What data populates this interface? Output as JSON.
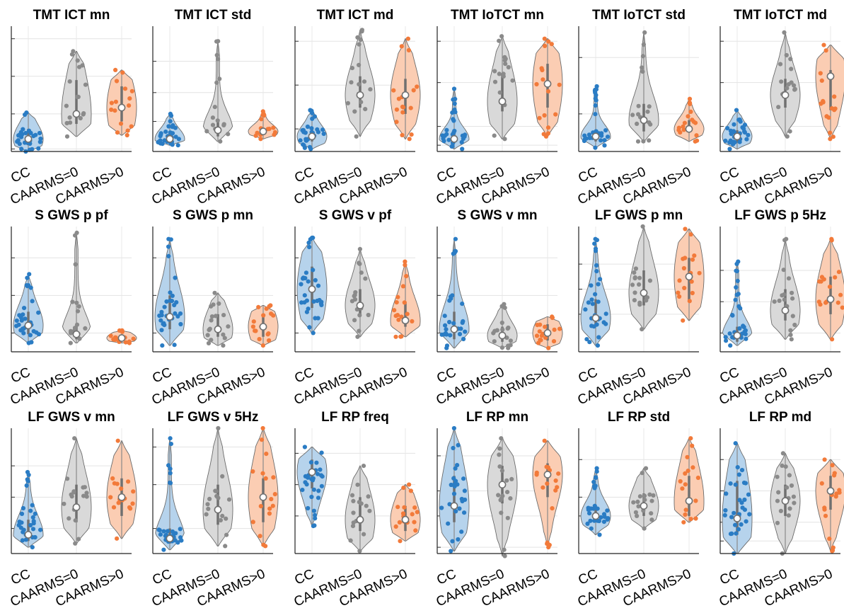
{
  "colors": {
    "CC": "#2a7cc4",
    "CAARMS=0": "#8a8a8a",
    "CAARMS>0": "#f27a3a"
  },
  "fill_colors": {
    "CC": "#b6d3ec",
    "CAARMS=0": "#d9d9d9",
    "CAARMS>0": "#fbcdb3"
  },
  "chart_data": {
    "type": "violin",
    "grid": true,
    "categories": [
      "CC",
      "CAARMS=0",
      "CAARMS>0"
    ],
    "ylim": [
      0,
      100
    ],
    "y_tick_labels_shown": false,
    "panels": [
      {
        "title": "TMT ICT mn",
        "yticks": [
          90,
          60,
          30,
          2
        ],
        "groups": [
          {
            "name": "CC",
            "range": [
              0,
              31
            ],
            "q1": 5,
            "median": 10,
            "q3": 18
          },
          {
            "name": "CAARMS=0",
            "range": [
              12,
              80
            ],
            "q1": 22,
            "median": 30,
            "q3": 57
          },
          {
            "name": "CAARMS>0",
            "range": [
              13,
              65
            ],
            "q1": 24,
            "median": 35,
            "q3": 52
          }
        ]
      },
      {
        "title": "TMT ICT std",
        "yticks": [
          72,
          47,
          24
        ],
        "groups": [
          {
            "name": "CC",
            "range": [
              5,
              30
            ],
            "q1": 7,
            "median": 10,
            "q3": 16
          },
          {
            "name": "CAARMS=0",
            "range": [
              8,
              88
            ],
            "q1": 12,
            "median": 17,
            "q3": 25
          },
          {
            "name": "CAARMS>0",
            "range": [
              10,
              32
            ],
            "q1": 13,
            "median": 16,
            "q3": 19
          }
        ]
      },
      {
        "title": "TMT ICT md",
        "yticks": [
          88,
          53,
          18
        ],
        "groups": [
          {
            "name": "CC",
            "range": [
              2,
              33
            ],
            "q1": 8,
            "median": 12,
            "q3": 18
          },
          {
            "name": "CAARMS=0",
            "range": [
              12,
              97
            ],
            "q1": 35,
            "median": 45,
            "q3": 60
          },
          {
            "name": "CAARMS>0",
            "range": [
              10,
              90
            ],
            "q1": 30,
            "median": 45,
            "q3": 58
          }
        ]
      },
      {
        "title": "TMT IoTCT mn",
        "yticks": [
          88,
          55,
          20,
          5
        ],
        "groups": [
          {
            "name": "CC",
            "range": [
              2,
              50
            ],
            "q1": 7,
            "median": 10,
            "q3": 17
          },
          {
            "name": "CAARMS=0",
            "range": [
              10,
              92
            ],
            "q1": 32,
            "median": 40,
            "q3": 62
          },
          {
            "name": "CAARMS>0",
            "range": [
              12,
              90
            ],
            "q1": 35,
            "median": 54,
            "q3": 70
          }
        ]
      },
      {
        "title": "TMT IoTCT std",
        "yticks": [
          75,
          30
        ],
        "groups": [
          {
            "name": "CC",
            "range": [
              3,
              52
            ],
            "q1": 8,
            "median": 12,
            "q3": 17
          },
          {
            "name": "CAARMS=0",
            "range": [
              8,
              95
            ],
            "q1": 16,
            "median": 25,
            "q3": 38
          },
          {
            "name": "CAARMS>0",
            "range": [
              8,
              42
            ],
            "q1": 15,
            "median": 18,
            "q3": 25
          }
        ]
      },
      {
        "title": "TMT IoTCT md",
        "yticks": [
          88,
          55,
          20
        ],
        "groups": [
          {
            "name": "CC",
            "range": [
              2,
              33
            ],
            "q1": 7,
            "median": 12,
            "q3": 17
          },
          {
            "name": "CAARMS=0",
            "range": [
              12,
              95
            ],
            "q1": 35,
            "median": 45,
            "q3": 58
          },
          {
            "name": "CAARMS>0",
            "range": [
              10,
              85
            ],
            "q1": 33,
            "median": 60,
            "q3": 65
          }
        ]
      },
      {
        "title": "S GWS p pf",
        "yticks": [
          75,
          45,
          15
        ],
        "groups": [
          {
            "name": "CC",
            "range": [
              7,
              62
            ],
            "q1": 14,
            "median": 21,
            "q3": 32
          },
          {
            "name": "CAARMS=0",
            "range": [
              7,
              95
            ],
            "q1": 10,
            "median": 14,
            "q3": 22
          },
          {
            "name": "CAARMS>0",
            "range": [
              7,
              17
            ],
            "q1": 9,
            "median": 11,
            "q3": 13
          }
        ]
      },
      {
        "title": "S GWS p mn",
        "yticks": [
          75,
          45,
          15
        ],
        "groups": [
          {
            "name": "CC",
            "range": [
              5,
              90
            ],
            "q1": 18,
            "median": 28,
            "q3": 45
          },
          {
            "name": "CAARMS=0",
            "range": [
              5,
              47
            ],
            "q1": 12,
            "median": 18,
            "q3": 30
          },
          {
            "name": "CAARMS>0",
            "range": [
              5,
              37
            ],
            "q1": 12,
            "median": 20,
            "q3": 30
          }
        ]
      },
      {
        "title": "S GWS v pf",
        "yticks": [
          75,
          45,
          15
        ],
        "groups": [
          {
            "name": "CC",
            "range": [
              15,
              91
            ],
            "q1": 35,
            "median": 50,
            "q3": 68
          },
          {
            "name": "CAARMS=0",
            "range": [
              12,
              82
            ],
            "q1": 28,
            "median": 37,
            "q3": 50
          },
          {
            "name": "CAARMS>0",
            "range": [
              12,
              72
            ],
            "q1": 20,
            "median": 25,
            "q3": 40
          }
        ]
      },
      {
        "title": "S GWS v mn",
        "yticks": [
          75,
          45,
          15
        ],
        "groups": [
          {
            "name": "CC",
            "range": [
              3,
              90
            ],
            "q1": 10,
            "median": 18,
            "q3": 32
          },
          {
            "name": "CAARMS=0",
            "range": [
              3,
              38
            ],
            "q1": 8,
            "median": 13,
            "q3": 20
          },
          {
            "name": "CAARMS>0",
            "range": [
              3,
              28
            ],
            "q1": 9,
            "median": 15,
            "q3": 22
          }
        ]
      },
      {
        "title": "LF GWS p mn",
        "yticks": [
          70,
          50,
          30
        ],
        "groups": [
          {
            "name": "CC",
            "range": [
              5,
              90
            ],
            "q1": 20,
            "median": 27,
            "q3": 42
          },
          {
            "name": "CAARMS=0",
            "range": [
              18,
              100
            ],
            "q1": 37,
            "median": 47,
            "q3": 65
          },
          {
            "name": "CAARMS>0",
            "range": [
              25,
              98
            ],
            "q1": 40,
            "median": 60,
            "q3": 75
          }
        ]
      },
      {
        "title": "LF GWS p 5Hz",
        "yticks": [
          65,
          40,
          15
        ],
        "groups": [
          {
            "name": "CC",
            "range": [
              5,
              72
            ],
            "q1": 8,
            "median": 13,
            "q3": 20
          },
          {
            "name": "CAARMS=0",
            "range": [
              10,
              90
            ],
            "q1": 25,
            "median": 33,
            "q3": 50
          },
          {
            "name": "CAARMS>0",
            "range": [
              10,
              90
            ],
            "q1": 30,
            "median": 42,
            "q3": 60
          }
        ]
      },
      {
        "title": "LF GWS v mn",
        "yticks": [
          70,
          45,
          20
        ],
        "groups": [
          {
            "name": "CC",
            "range": [
              5,
              65
            ],
            "q1": 10,
            "median": 15,
            "q3": 27
          },
          {
            "name": "CAARMS=0",
            "range": [
              8,
              92
            ],
            "q1": 25,
            "median": 37,
            "q3": 55
          },
          {
            "name": "CAARMS>0",
            "range": [
              12,
              90
            ],
            "q1": 30,
            "median": 45,
            "q3": 60
          }
        ]
      },
      {
        "title": "LF GWS v 5Hz",
        "yticks": [
          85,
          55,
          20
        ],
        "groups": [
          {
            "name": "CC",
            "range": [
              3,
              92
            ],
            "q1": 8,
            "median": 12,
            "q3": 20
          },
          {
            "name": "CAARMS=0",
            "range": [
              6,
              100
            ],
            "q1": 23,
            "median": 35,
            "q3": 55
          },
          {
            "name": "CAARMS>0",
            "range": [
              6,
              100
            ],
            "q1": 25,
            "median": 45,
            "q3": 60
          }
        ]
      },
      {
        "title": "LF RP freq",
        "yticks": [
          80,
          55,
          30
        ],
        "groups": [
          {
            "name": "CC",
            "range": [
              22,
              85
            ],
            "q1": 52,
            "median": 65,
            "q3": 75
          },
          {
            "name": "CAARMS=0",
            "range": [
              2,
              70
            ],
            "q1": 18,
            "median": 27,
            "q3": 45
          },
          {
            "name": "CAARMS>0",
            "range": [
              10,
              55
            ],
            "q1": 18,
            "median": 27,
            "q3": 38
          }
        ]
      },
      {
        "title": "LF RP mn",
        "yticks": [
          78,
          50,
          30,
          5
        ],
        "groups": [
          {
            "name": "CC",
            "range": [
              2,
              100
            ],
            "q1": 25,
            "median": 38,
            "q3": 62
          },
          {
            "name": "CAARMS=0",
            "range": [
              -2,
              92
            ],
            "q1": 40,
            "median": 55,
            "q3": 70
          },
          {
            "name": "CAARMS>0",
            "range": [
              5,
              90
            ],
            "q1": 45,
            "median": 63,
            "q3": 72
          }
        ]
      },
      {
        "title": "LF RP std",
        "yticks": [
          75,
          45,
          30
        ],
        "groups": [
          {
            "name": "CC",
            "range": [
              15,
              68
            ],
            "q1": 25,
            "median": 30,
            "q3": 38
          },
          {
            "name": "CAARMS=0",
            "range": [
              20,
              68
            ],
            "q1": 30,
            "median": 38,
            "q3": 48
          },
          {
            "name": "CAARMS>0",
            "range": [
              25,
              92
            ],
            "q1": 30,
            "median": 42,
            "q3": 62
          }
        ]
      },
      {
        "title": "LF RP md",
        "yticks": [
          75,
          50,
          25,
          10
        ],
        "groups": [
          {
            "name": "CC",
            "range": [
              0,
              88
            ],
            "q1": 15,
            "median": 28,
            "q3": 58
          },
          {
            "name": "CAARMS=0",
            "range": [
              0,
              80
            ],
            "q1": 30,
            "median": 42,
            "q3": 55
          },
          {
            "name": "CAARMS>0",
            "range": [
              2,
              75
            ],
            "q1": 35,
            "median": 50,
            "q3": 62
          }
        ]
      }
    ]
  }
}
